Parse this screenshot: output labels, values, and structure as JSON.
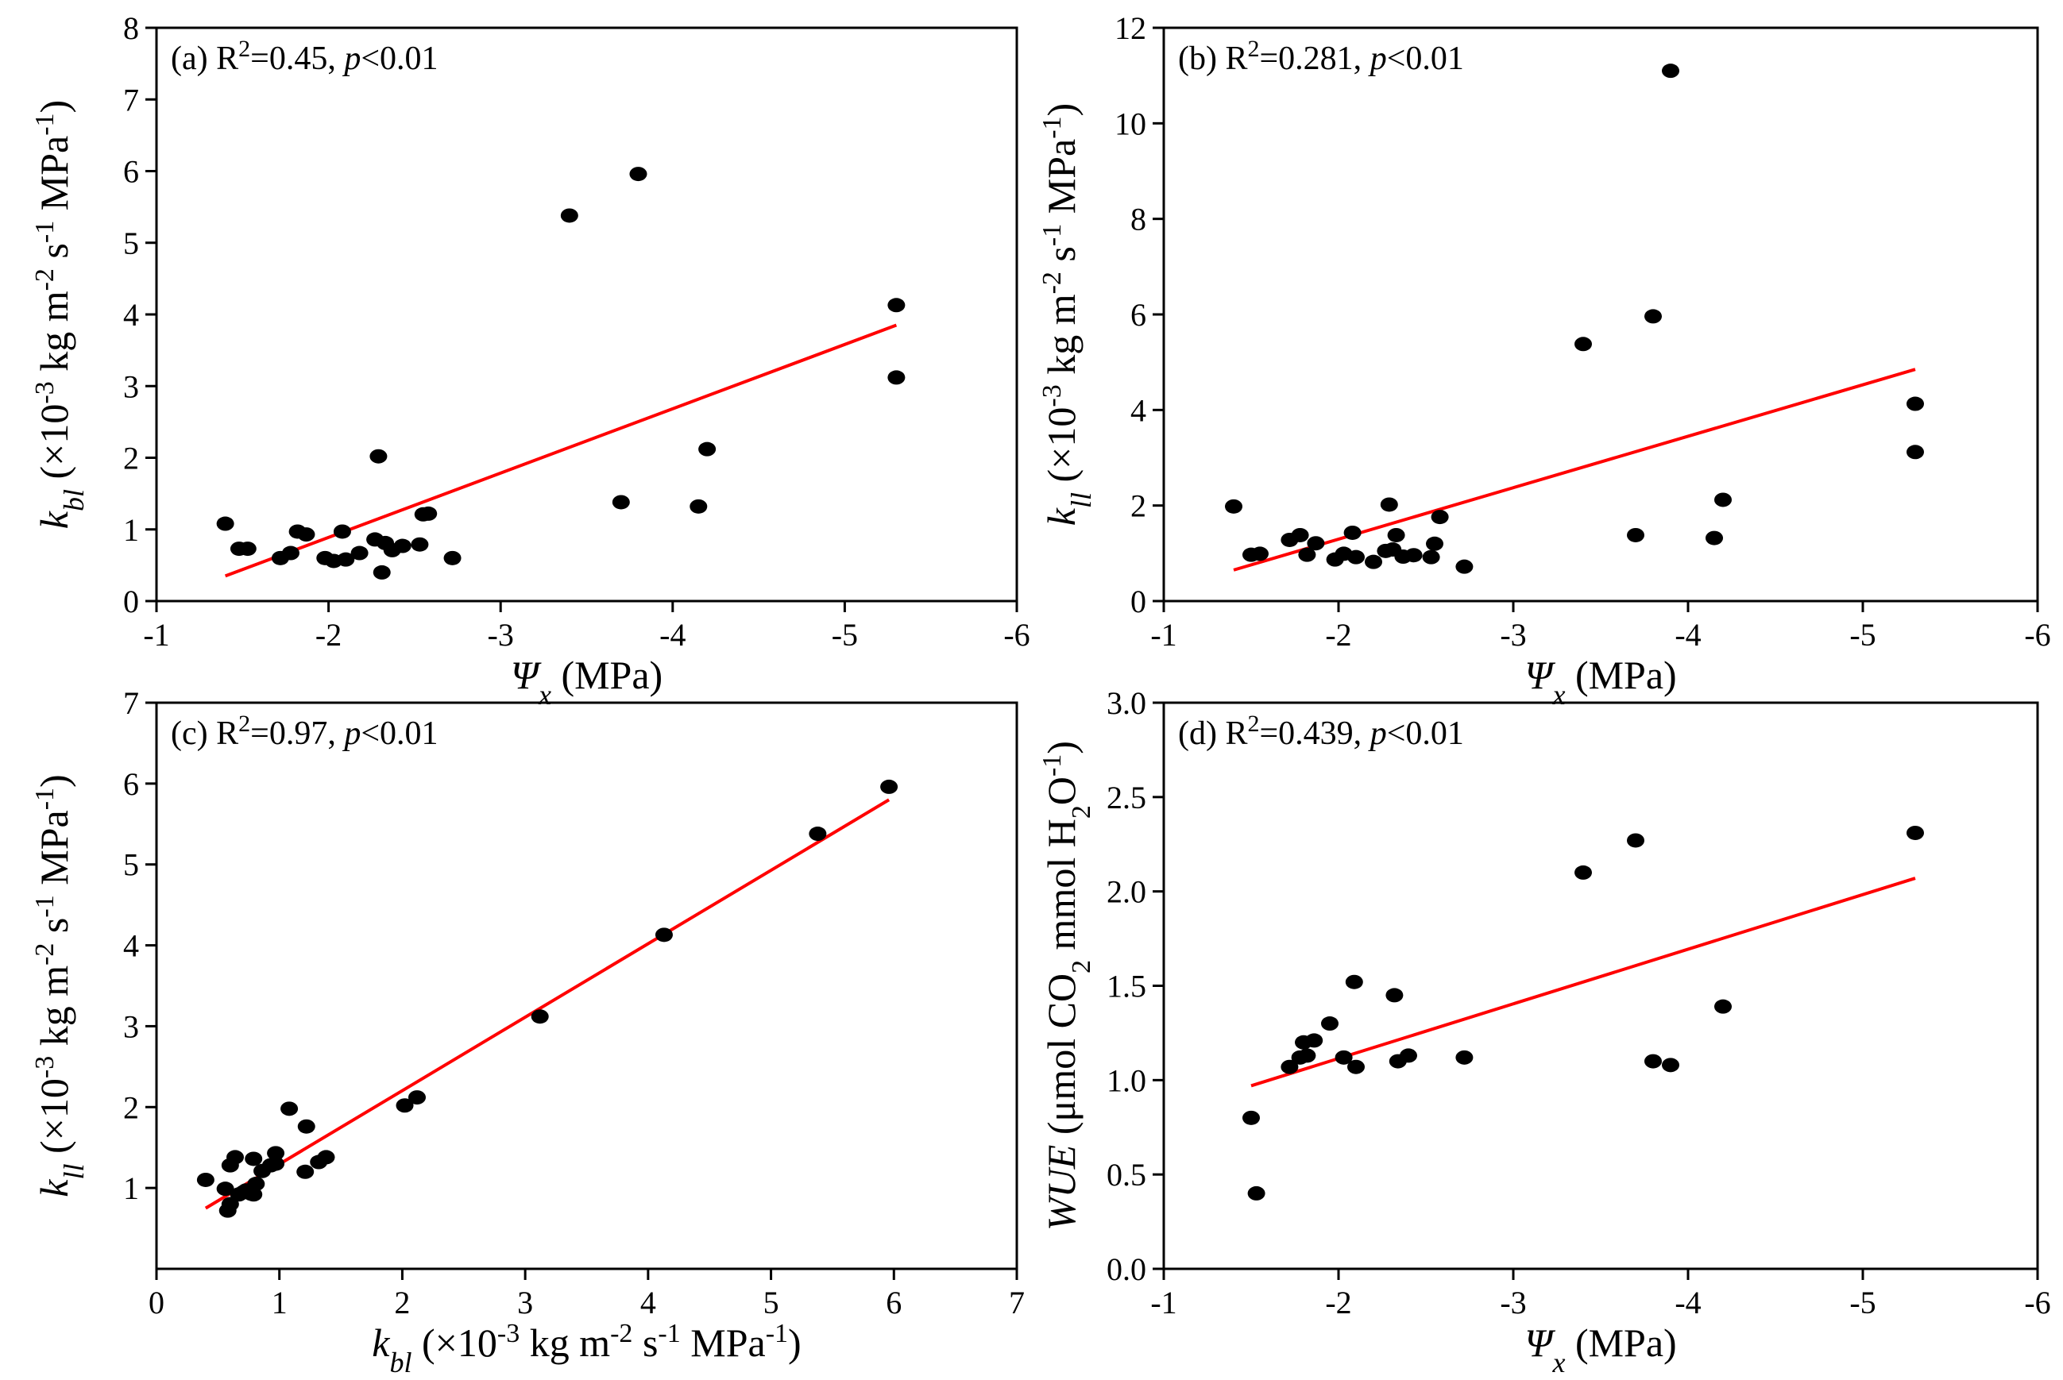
{
  "chart_data": [
    {
      "id": "a",
      "type": "scatter",
      "annotation": {
        "prefix": "(a) R",
        "sup": "2",
        "mid": "=0.45, ",
        "p": "p",
        "suffix": "<0.01"
      },
      "xlabel": {
        "main": "Ψ",
        "sub": "x",
        "unit": " (MPa)"
      },
      "ylabel": {
        "var": "k",
        "sub": "bl",
        "unit_parts": [
          " (×10",
          "-3",
          " kg m",
          "-2",
          " s",
          "-1",
          " MPa",
          "-1",
          ")"
        ]
      },
      "xlim": [
        -1,
        -6
      ],
      "ylim": [
        0,
        8
      ],
      "xticks": [
        -1,
        -2,
        -3,
        -4,
        -5,
        -6
      ],
      "xtick_labels": [
        "-1",
        "-2",
        "-3",
        "-4",
        "-5",
        "-6"
      ],
      "yticks": [
        0,
        1,
        2,
        3,
        4,
        5,
        6,
        7,
        8
      ],
      "ytick_labels": [
        "0",
        "1",
        "2",
        "3",
        "4",
        "5",
        "6",
        "7",
        "8"
      ],
      "points": [
        [
          -1.4,
          1.08
        ],
        [
          -1.48,
          0.73
        ],
        [
          -1.53,
          0.73
        ],
        [
          -1.72,
          0.6
        ],
        [
          -1.78,
          0.67
        ],
        [
          -1.82,
          0.97
        ],
        [
          -1.87,
          0.93
        ],
        [
          -1.98,
          0.6
        ],
        [
          -2.03,
          0.56
        ],
        [
          -2.08,
          0.97
        ],
        [
          -2.1,
          0.58
        ],
        [
          -2.18,
          0.67
        ],
        [
          -2.27,
          0.86
        ],
        [
          -2.29,
          2.02
        ],
        [
          -2.31,
          0.4
        ],
        [
          -2.33,
          0.81
        ],
        [
          -2.37,
          0.71
        ],
        [
          -2.43,
          0.77
        ],
        [
          -2.53,
          0.79
        ],
        [
          -2.55,
          1.21
        ],
        [
          -2.58,
          1.22
        ],
        [
          -2.72,
          0.6
        ],
        [
          -3.4,
          5.38
        ],
        [
          -3.7,
          1.38
        ],
        [
          -3.8,
          5.96
        ],
        [
          -4.15,
          1.32
        ],
        [
          -4.2,
          2.12
        ],
        [
          -5.3,
          4.13
        ],
        [
          -5.3,
          3.12
        ]
      ],
      "fit": [
        [
          -1.4,
          0.35
        ],
        [
          -5.3,
          3.85
        ]
      ]
    },
    {
      "id": "b",
      "type": "scatter",
      "annotation": {
        "prefix": "(b) R",
        "sup": "2",
        "mid": "=0.281, ",
        "p": "p",
        "suffix": "<0.01"
      },
      "xlabel": {
        "main": "Ψ",
        "sub": "x",
        "unit": " (MPa)"
      },
      "ylabel": {
        "var": "k",
        "sub": "ll",
        "unit_parts": [
          " (×10",
          "-3",
          " kg m",
          "-2",
          " s",
          "-1",
          " MPa",
          "-1",
          ")"
        ]
      },
      "xlim": [
        -1,
        -6
      ],
      "ylim": [
        0,
        12
      ],
      "xticks": [
        -1,
        -2,
        -3,
        -4,
        -5,
        -6
      ],
      "xtick_labels": [
        "-1",
        "-2",
        "-3",
        "-4",
        "-5",
        "-6"
      ],
      "yticks": [
        0,
        2,
        4,
        6,
        8,
        10,
        12
      ],
      "ytick_labels": [
        "0",
        "2",
        "4",
        "6",
        "8",
        "10",
        "12"
      ],
      "points": [
        [
          -1.4,
          1.98
        ],
        [
          -1.5,
          0.97
        ],
        [
          -1.55,
          0.99
        ],
        [
          -1.72,
          1.28
        ],
        [
          -1.78,
          1.38
        ],
        [
          -1.82,
          0.97
        ],
        [
          -1.87,
          1.21
        ],
        [
          -1.98,
          0.87
        ],
        [
          -2.03,
          0.99
        ],
        [
          -2.08,
          1.43
        ],
        [
          -2.1,
          0.92
        ],
        [
          -2.2,
          0.82
        ],
        [
          -2.27,
          1.05
        ],
        [
          -2.29,
          2.02
        ],
        [
          -2.31,
          1.08
        ],
        [
          -2.33,
          1.38
        ],
        [
          -2.37,
          0.93
        ],
        [
          -2.43,
          0.96
        ],
        [
          -2.53,
          0.92
        ],
        [
          -2.55,
          1.2
        ],
        [
          -2.58,
          1.76
        ],
        [
          -2.72,
          0.72
        ],
        [
          -3.4,
          5.38
        ],
        [
          -3.7,
          1.38
        ],
        [
          -3.8,
          5.96
        ],
        [
          -3.9,
          11.1
        ],
        [
          -4.15,
          1.32
        ],
        [
          -4.2,
          2.12
        ],
        [
          -5.3,
          4.13
        ],
        [
          -5.3,
          3.12
        ]
      ],
      "fit": [
        [
          -1.4,
          0.65
        ],
        [
          -5.3,
          4.85
        ]
      ]
    },
    {
      "id": "c",
      "type": "scatter",
      "annotation": {
        "prefix": "(c) R",
        "sup": "2",
        "mid": "=0.97, ",
        "p": "p",
        "suffix": "<0.01"
      },
      "xlabel": {
        "var": "k",
        "sub": "bl",
        "unit_parts": [
          " (×10",
          "-3",
          " kg m",
          "-2",
          " s",
          "-1",
          " MPa",
          "-1",
          ")"
        ]
      },
      "ylabel": {
        "var": "k",
        "sub": "ll",
        "unit_parts": [
          " (×10",
          "-3",
          " kg m",
          "-2",
          " s",
          "-1",
          " MPa",
          "-1",
          ")"
        ]
      },
      "xlim": [
        0,
        7
      ],
      "ylim": [
        0,
        7
      ],
      "xticks": [
        0,
        1,
        2,
        3,
        4,
        5,
        6,
        7
      ],
      "xtick_labels": [
        "0",
        "1",
        "2",
        "3",
        "4",
        "5",
        "6",
        "7"
      ],
      "yticks": [
        1,
        2,
        3,
        4,
        5,
        6,
        7
      ],
      "ytick_labels": [
        "1",
        "2",
        "3",
        "4",
        "5",
        "6",
        "7"
      ],
      "points": [
        [
          0.4,
          1.1
        ],
        [
          0.56,
          0.99
        ],
        [
          0.58,
          0.72
        ],
        [
          0.6,
          1.28
        ],
        [
          0.6,
          0.8
        ],
        [
          0.64,
          1.38
        ],
        [
          0.67,
          0.92
        ],
        [
          0.71,
          0.95
        ],
        [
          0.73,
          0.97
        ],
        [
          0.77,
          0.93
        ],
        [
          0.79,
          0.92
        ],
        [
          0.79,
          1.36
        ],
        [
          0.81,
          1.05
        ],
        [
          0.86,
          1.21
        ],
        [
          0.93,
          1.28
        ],
        [
          0.97,
          1.43
        ],
        [
          0.97,
          1.3
        ],
        [
          1.08,
          1.98
        ],
        [
          1.21,
          1.2
        ],
        [
          1.22,
          1.76
        ],
        [
          1.32,
          1.32
        ],
        [
          1.38,
          1.38
        ],
        [
          2.02,
          2.02
        ],
        [
          2.12,
          2.12
        ],
        [
          3.12,
          3.12
        ],
        [
          4.13,
          4.13
        ],
        [
          5.38,
          5.38
        ],
        [
          5.96,
          5.96
        ]
      ],
      "fit": [
        [
          0.4,
          0.75
        ],
        [
          5.96,
          5.8
        ]
      ]
    },
    {
      "id": "d",
      "type": "scatter",
      "annotation": {
        "prefix": "(d) R",
        "sup": "2",
        "mid": "=0.439, ",
        "p": "p",
        "suffix": "<0.01"
      },
      "xlabel": {
        "main": "Ψ",
        "sub": "x",
        "unit": " (MPa)"
      },
      "ylabel": {
        "var": "WUE",
        "unit_parts": [
          " (μmol CO",
          "2",
          " mmol H",
          "2",
          "O",
          "-1",
          ")"
        ]
      },
      "xlim": [
        -1,
        -6
      ],
      "ylim": [
        0,
        3
      ],
      "xticks": [
        -1,
        -2,
        -3,
        -4,
        -5,
        -6
      ],
      "xtick_labels": [
        "-1",
        "-2",
        "-3",
        "-4",
        "-5",
        "-6"
      ],
      "yticks": [
        0,
        0.5,
        1,
        1.5,
        2,
        2.5,
        3
      ],
      "ytick_labels": [
        "0.0",
        "0.5",
        "1.0",
        "1.5",
        "2.0",
        "2.5",
        "3.0"
      ],
      "points": [
        [
          -1.5,
          0.8
        ],
        [
          -1.53,
          0.4
        ],
        [
          -1.72,
          1.07
        ],
        [
          -1.78,
          1.12
        ],
        [
          -1.8,
          1.2
        ],
        [
          -1.82,
          1.13
        ],
        [
          -1.86,
          1.21
        ],
        [
          -1.95,
          1.3
        ],
        [
          -2.03,
          1.12
        ],
        [
          -2.09,
          1.52
        ],
        [
          -2.1,
          1.07
        ],
        [
          -2.32,
          1.45
        ],
        [
          -2.34,
          1.1
        ],
        [
          -2.4,
          1.13
        ],
        [
          -2.72,
          1.12
        ],
        [
          -3.4,
          2.1
        ],
        [
          -3.7,
          2.27
        ],
        [
          -3.8,
          1.1
        ],
        [
          -3.9,
          1.08
        ],
        [
          -4.2,
          1.39
        ],
        [
          -5.3,
          2.31
        ]
      ],
      "fit": [
        [
          -1.5,
          0.97
        ],
        [
          -5.3,
          2.07
        ]
      ]
    }
  ]
}
